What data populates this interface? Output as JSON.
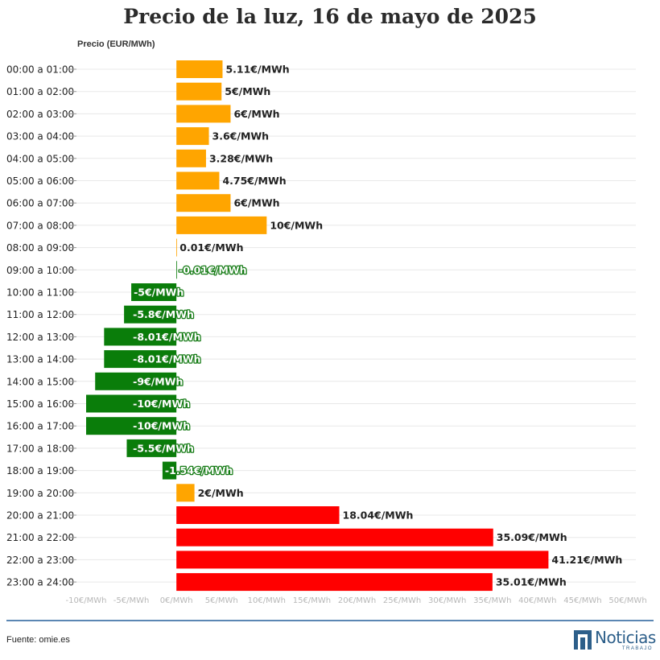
{
  "chart_data": {
    "type": "bar",
    "orientation": "horizontal",
    "title": "Precio de la luz, 16 de mayo de 2025",
    "ylabel": "Precio (EUR/MWh)",
    "xlabel": "",
    "unit": "€/MWh",
    "xlim": [
      -10,
      50
    ],
    "ticks": [
      -10,
      -5,
      0,
      5,
      10,
      15,
      20,
      25,
      30,
      35,
      40,
      45,
      50
    ],
    "tick_labels": [
      "-10€/MWh",
      "-5€/MWh",
      "0€/MWh",
      "5€/MWh",
      "10€/MWh",
      "15€/MWh",
      "20€/MWh",
      "25€/MWh",
      "30€/MWh",
      "35€/MWh",
      "40€/MWh",
      "45€/MWh",
      "50€/MWh"
    ],
    "categories": [
      "00:00 a 01:00",
      "01:00 a 02:00",
      "02:00 a 03:00",
      "03:00 a 04:00",
      "04:00 a 05:00",
      "05:00 a 06:00",
      "06:00 a 07:00",
      "07:00 a 08:00",
      "08:00 a 09:00",
      "09:00 a 10:00",
      "10:00 a 11:00",
      "11:00 a 12:00",
      "12:00 a 13:00",
      "13:00 a 14:00",
      "14:00 a 15:00",
      "15:00 a 16:00",
      "16:00 a 17:00",
      "17:00 a 18:00",
      "18:00 a 19:00",
      "19:00 a 20:00",
      "20:00 a 21:00",
      "21:00 a 22:00",
      "22:00 a 23:00",
      "23:00 a 24:00"
    ],
    "values": [
      5.11,
      5,
      6,
      3.6,
      3.28,
      4.75,
      6,
      10,
      0.01,
      -0.01,
      -5,
      -5.8,
      -8.01,
      -8.01,
      -9,
      -10,
      -10,
      -5.5,
      -1.54,
      2,
      18.04,
      35.09,
      41.21,
      35.01
    ],
    "value_labels": [
      "5.11€/MWh",
      "5€/MWh",
      "6€/MWh",
      "3.6€/MWh",
      "3.28€/MWh",
      "4.75€/MWh",
      "6€/MWh",
      "10€/MWh",
      "0.01€/MWh",
      "-0.01€/MWh",
      "-5€/MWh",
      "-5.8€/MWh",
      "-8.01€/MWh",
      "-8.01€/MWh",
      "-9€/MWh",
      "-10€/MWh",
      "-10€/MWh",
      "-5.5€/MWh",
      "-1.54€/MWh",
      "2€/MWh",
      "18.04€/MWh",
      "35.09€/MWh",
      "41.21€/MWh",
      "35.01€/MWh"
    ],
    "color_scale": {
      "negative": "#0a7d0a",
      "moderate": "#ffa500",
      "high": "#ff0000",
      "high_threshold": 15
    },
    "grid": true
  },
  "footer": {
    "source": "Fuente: omie.es",
    "logo_name": "Noticias",
    "logo_sub": "TRABAJO"
  }
}
